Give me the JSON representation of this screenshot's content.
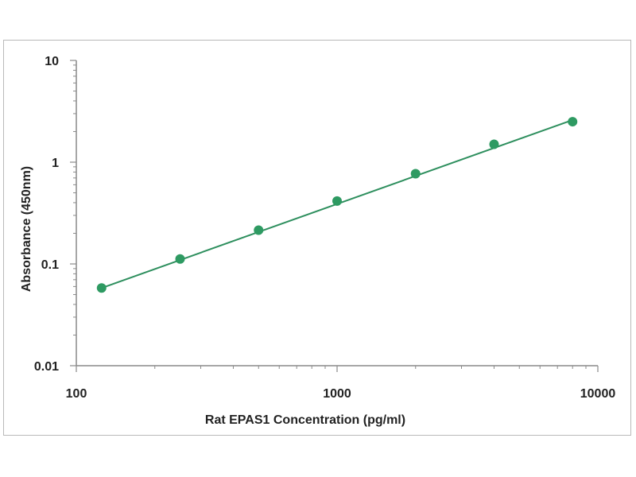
{
  "chart_data": {
    "type": "scatter",
    "title": "",
    "xlabel": "Rat EPAS1  Concentration (pg/ml)",
    "ylabel": "Absorbance (450nm)",
    "xscale": "log",
    "yscale": "log",
    "xlim": [
      100,
      10000
    ],
    "ylim": [
      0.01,
      10
    ],
    "x_tick_labels": [
      "100",
      "1000",
      "10000"
    ],
    "y_tick_labels": [
      "10",
      "1",
      "0.1",
      "0.01"
    ],
    "grid": false,
    "legend": "none",
    "series": [
      {
        "x": [
          125,
          250,
          500,
          1000,
          2000,
          4000,
          8000
        ],
        "y": [
          0.058,
          0.112,
          0.215,
          0.415,
          0.77,
          1.5,
          2.5
        ]
      }
    ],
    "fit_line": {
      "x": [
        125,
        8000
      ],
      "y": [
        0.058,
        2.6
      ]
    },
    "colors": {
      "series": "#2e9a62",
      "line": "#2e8f5e",
      "axis": "#8a8a8a",
      "text": "#222222",
      "frame": "#b9b9b9"
    }
  }
}
